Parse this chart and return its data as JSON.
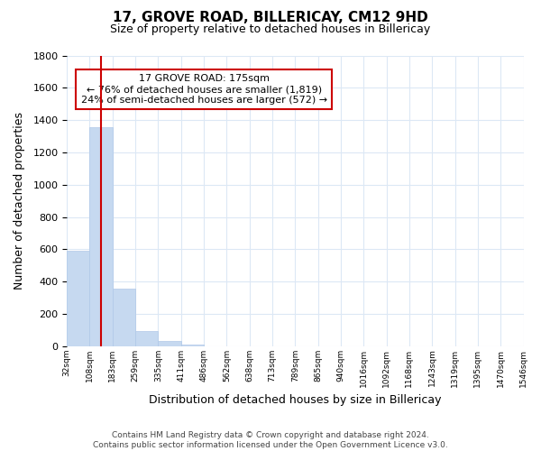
{
  "title": "17, GROVE ROAD, BILLERICAY, CM12 9HD",
  "subtitle": "Size of property relative to detached houses in Billericay",
  "xlabel": "Distribution of detached houses by size in Billericay",
  "ylabel": "Number of detached properties",
  "bin_labels": [
    "32sqm",
    "108sqm",
    "183sqm",
    "259sqm",
    "335sqm",
    "411sqm",
    "486sqm",
    "562sqm",
    "638sqm",
    "713sqm",
    "789sqm",
    "865sqm",
    "940sqm",
    "1016sqm",
    "1092sqm",
    "1168sqm",
    "1243sqm",
    "1319sqm",
    "1395sqm",
    "1470sqm",
    "1546sqm"
  ],
  "bar_heights": [
    590,
    1355,
    355,
    95,
    30,
    10,
    0,
    0,
    0,
    0,
    0,
    0,
    0,
    0,
    0,
    0,
    0,
    0,
    0,
    0
  ],
  "bar_color": "#c6d9f0",
  "bar_edge_color": "#b0c8e8",
  "vertical_line_color": "#cc0000",
  "ylim": [
    0,
    1800
  ],
  "yticks": [
    0,
    200,
    400,
    600,
    800,
    1000,
    1200,
    1400,
    1600,
    1800
  ],
  "annotation_title": "17 GROVE ROAD: 175sqm",
  "annotation_line1": "← 76% of detached houses are smaller (1,819)",
  "annotation_line2": "24% of semi-detached houses are larger (572) →",
  "annotation_box_color": "#ffffff",
  "annotation_box_edge": "#cc0000",
  "footer_line1": "Contains HM Land Registry data © Crown copyright and database right 2024.",
  "footer_line2": "Contains public sector information licensed under the Open Government Licence v3.0.",
  "background_color": "#ffffff",
  "grid_color": "#dce8f5"
}
